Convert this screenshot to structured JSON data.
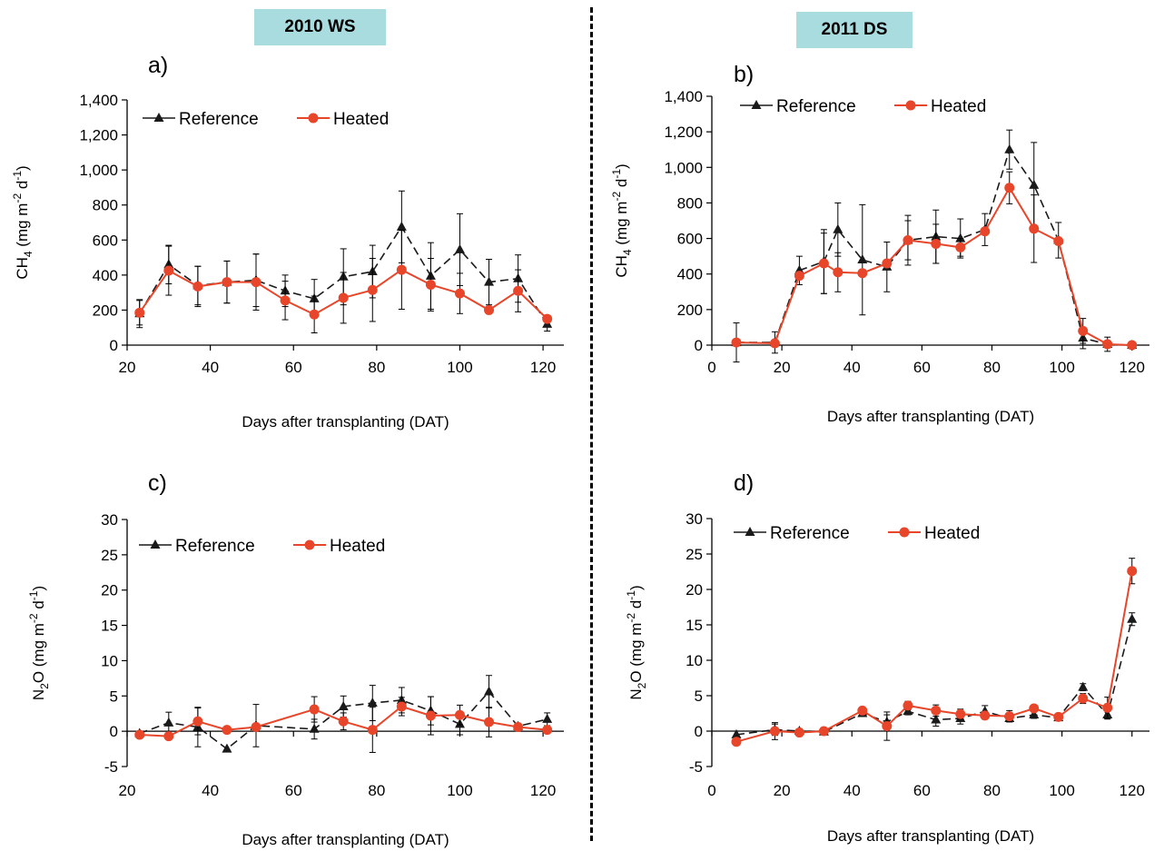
{
  "seasons": {
    "left": "2010 WS",
    "right": "2011 DS"
  },
  "colors": {
    "reference": "#1a1a1a",
    "heated": "#e8462a",
    "season_box": "#a9dcdf"
  },
  "chart_data": [
    {
      "id": "a",
      "panel_label": "a)",
      "type": "line",
      "gas": "CH4",
      "ylabel_parts": [
        "CH",
        "4",
        " (mg m",
        "-2",
        " d",
        "-1",
        ")"
      ],
      "xlabel": "Days after transplanting (DAT)",
      "xlim": [
        20,
        125
      ],
      "xticks": [
        20,
        40,
        60,
        80,
        100,
        120
      ],
      "ylim": [
        0,
        1400
      ],
      "yticks": [
        0,
        200,
        400,
        600,
        800,
        1000,
        1200,
        1400
      ],
      "ytick_labels": [
        "0",
        "200",
        "400",
        "600",
        "800",
        "1,000",
        "1,200",
        "1,400"
      ],
      "legend": [
        "Reference",
        "Heated"
      ],
      "series": [
        {
          "name": "Reference",
          "style": "dashed",
          "marker": "triangle",
          "x": [
            23,
            30,
            37,
            44,
            51,
            58,
            65,
            72,
            79,
            86,
            93,
            100,
            107,
            114,
            121
          ],
          "y": [
            180,
            460,
            340,
            360,
            370,
            310,
            265,
            390,
            420,
            675,
            395,
            545,
            360,
            380,
            120
          ],
          "err": [
            80,
            110,
            110,
            120,
            150,
            90,
            110,
            160,
            150,
            205,
            190,
            205,
            130,
            135,
            40
          ]
        },
        {
          "name": "Heated",
          "style": "solid",
          "marker": "circle",
          "x": [
            23,
            30,
            37,
            44,
            51,
            58,
            65,
            72,
            79,
            86,
            93,
            100,
            107,
            114,
            121
          ],
          "y": [
            185,
            425,
            335,
            360,
            360,
            255,
            175,
            270,
            315,
            430,
            345,
            295,
            200,
            310,
            150
          ],
          "err": [
            70,
            140,
            115,
            120,
            160,
            110,
            105,
            145,
            180,
            225,
            150,
            115,
            0,
            120,
            0
          ]
        }
      ]
    },
    {
      "id": "b",
      "panel_label": "b)",
      "type": "line",
      "gas": "CH4",
      "ylabel_parts": [
        "CH",
        "4",
        " (mg m",
        "-2",
        " d",
        "-1",
        ")"
      ],
      "xlabel": "Days after transplanting (DAT)",
      "xlim": [
        0,
        125
      ],
      "xticks": [
        0,
        20,
        40,
        60,
        80,
        100,
        120
      ],
      "ylim": [
        0,
        1400
      ],
      "yticks": [
        0,
        200,
        400,
        600,
        800,
        1000,
        1200,
        1400
      ],
      "ytick_labels": [
        "0",
        "200",
        "400",
        "600",
        "800",
        "1,000",
        "1,200",
        "1,400"
      ],
      "legend": [
        "Reference",
        "Heated"
      ],
      "series": [
        {
          "name": "Reference",
          "style": "dashed",
          "marker": "triangle",
          "x": [
            7,
            18,
            25,
            32,
            36,
            43,
            50,
            56,
            64,
            71,
            78,
            85,
            92,
            99,
            106,
            113,
            120
          ],
          "y": [
            15,
            15,
            420,
            470,
            650,
            480,
            440,
            590,
            610,
            600,
            650,
            1100,
            900,
            590,
            40,
            5,
            0
          ],
          "err": [
            110,
            60,
            80,
            180,
            150,
            310,
            140,
            140,
            150,
            110,
            90,
            110,
            240,
            100,
            60,
            40,
            0
          ]
        },
        {
          "name": "Heated",
          "style": "solid",
          "marker": "circle",
          "x": [
            7,
            18,
            25,
            32,
            36,
            43,
            50,
            56,
            64,
            71,
            78,
            85,
            92,
            99,
            106,
            113,
            120
          ],
          "y": [
            15,
            10,
            390,
            460,
            410,
            405,
            460,
            590,
            570,
            550,
            640,
            885,
            655,
            585,
            80,
            5,
            0
          ],
          "err": [
            0,
            0,
            0,
            170,
            110,
            0,
            0,
            110,
            110,
            50,
            0,
            90,
            190,
            0,
            70,
            0,
            0
          ]
        }
      ]
    },
    {
      "id": "c",
      "panel_label": "c)",
      "type": "line",
      "gas": "N2O",
      "ylabel_parts": [
        "N",
        "2",
        "O (mg m",
        "-2",
        " d",
        "-1",
        ")"
      ],
      "xlabel": "Days after transplanting (DAT)",
      "xlim": [
        20,
        125
      ],
      "xticks": [
        20,
        40,
        60,
        80,
        100,
        120
      ],
      "ylim": [
        -5,
        30
      ],
      "yticks": [
        -5,
        0,
        5,
        10,
        15,
        20,
        25,
        30
      ],
      "ytick_labels": [
        "-5",
        "0",
        "5",
        "10",
        "15",
        "20",
        "25",
        "30"
      ],
      "legend": [
        "Reference",
        "Heated"
      ],
      "series": [
        {
          "name": "Reference",
          "style": "dashed",
          "marker": "triangle",
          "x": [
            23,
            30,
            37,
            44,
            51,
            65,
            72,
            79,
            86,
            93,
            100,
            107,
            114,
            121
          ],
          "y": [
            -0.3,
            1.2,
            0.6,
            -2.5,
            0.8,
            0.3,
            3.5,
            4.0,
            4.4,
            2.9,
            1.0,
            5.6,
            0.7,
            1.7
          ],
          "err": [
            0,
            1.5,
            2.8,
            0,
            3.0,
            1.4,
            1.5,
            2.5,
            1.8,
            2.0,
            1.5,
            2.3,
            0,
            0.9
          ]
        },
        {
          "name": "Heated",
          "style": "solid",
          "marker": "circle",
          "x": [
            23,
            30,
            37,
            44,
            51,
            65,
            72,
            79,
            86,
            93,
            100,
            107,
            114,
            121
          ],
          "y": [
            -0.5,
            -0.7,
            1.4,
            0.2,
            0.6,
            3.1,
            1.4,
            0.2,
            3.5,
            2.2,
            2.3,
            1.3,
            0.6,
            0.2
          ],
          "err": [
            0,
            0,
            1.9,
            0,
            0,
            1.8,
            1.2,
            3.2,
            1.3,
            2.7,
            1.4,
            2.1,
            0,
            0
          ]
        }
      ]
    },
    {
      "id": "d",
      "panel_label": "d)",
      "type": "line",
      "gas": "N2O",
      "ylabel_parts": [
        "N",
        "2",
        "O (mg m",
        "-2",
        " d",
        "-1",
        ")"
      ],
      "xlabel": "Days after transplanting (DAT)",
      "xlim": [
        0,
        125
      ],
      "xticks": [
        0,
        20,
        40,
        60,
        80,
        100,
        120
      ],
      "ylim": [
        -5,
        30
      ],
      "yticks": [
        -5,
        0,
        5,
        10,
        15,
        20,
        25,
        30
      ],
      "ytick_labels": [
        "-5",
        "0",
        "5",
        "10",
        "15",
        "20",
        "25",
        "30"
      ],
      "legend": [
        "Reference",
        "Heated"
      ],
      "series": [
        {
          "name": "Reference",
          "style": "dashed",
          "marker": "triangle",
          "x": [
            7,
            18,
            25,
            32,
            43,
            50,
            56,
            64,
            71,
            78,
            85,
            92,
            99,
            106,
            113,
            120
          ],
          "y": [
            -0.5,
            0.2,
            0.0,
            -0.1,
            2.5,
            1.3,
            2.8,
            1.6,
            1.8,
            2.8,
            1.8,
            2.3,
            1.9,
            6.2,
            2.3,
            15.8
          ],
          "err": [
            0,
            0.8,
            0.3,
            0,
            0.4,
            1.0,
            0.5,
            0.9,
            0.8,
            0.8,
            0.5,
            0.5,
            0.3,
            0.5,
            0.6,
            0.9
          ]
        },
        {
          "name": "Heated",
          "style": "solid",
          "marker": "circle",
          "x": [
            7,
            18,
            25,
            32,
            43,
            50,
            56,
            64,
            71,
            78,
            85,
            92,
            99,
            106,
            113,
            120
          ],
          "y": [
            -1.5,
            0.0,
            -0.2,
            0.0,
            2.9,
            0.7,
            3.6,
            2.9,
            2.4,
            2.2,
            2.1,
            3.2,
            2.0,
            4.6,
            3.3,
            22.6
          ],
          "err": [
            0,
            1.2,
            0,
            0,
            0.4,
            2.0,
            0.6,
            0.8,
            0.7,
            0.5,
            0.8,
            0.3,
            0,
            0.7,
            1.5,
            1.8
          ]
        }
      ]
    }
  ]
}
